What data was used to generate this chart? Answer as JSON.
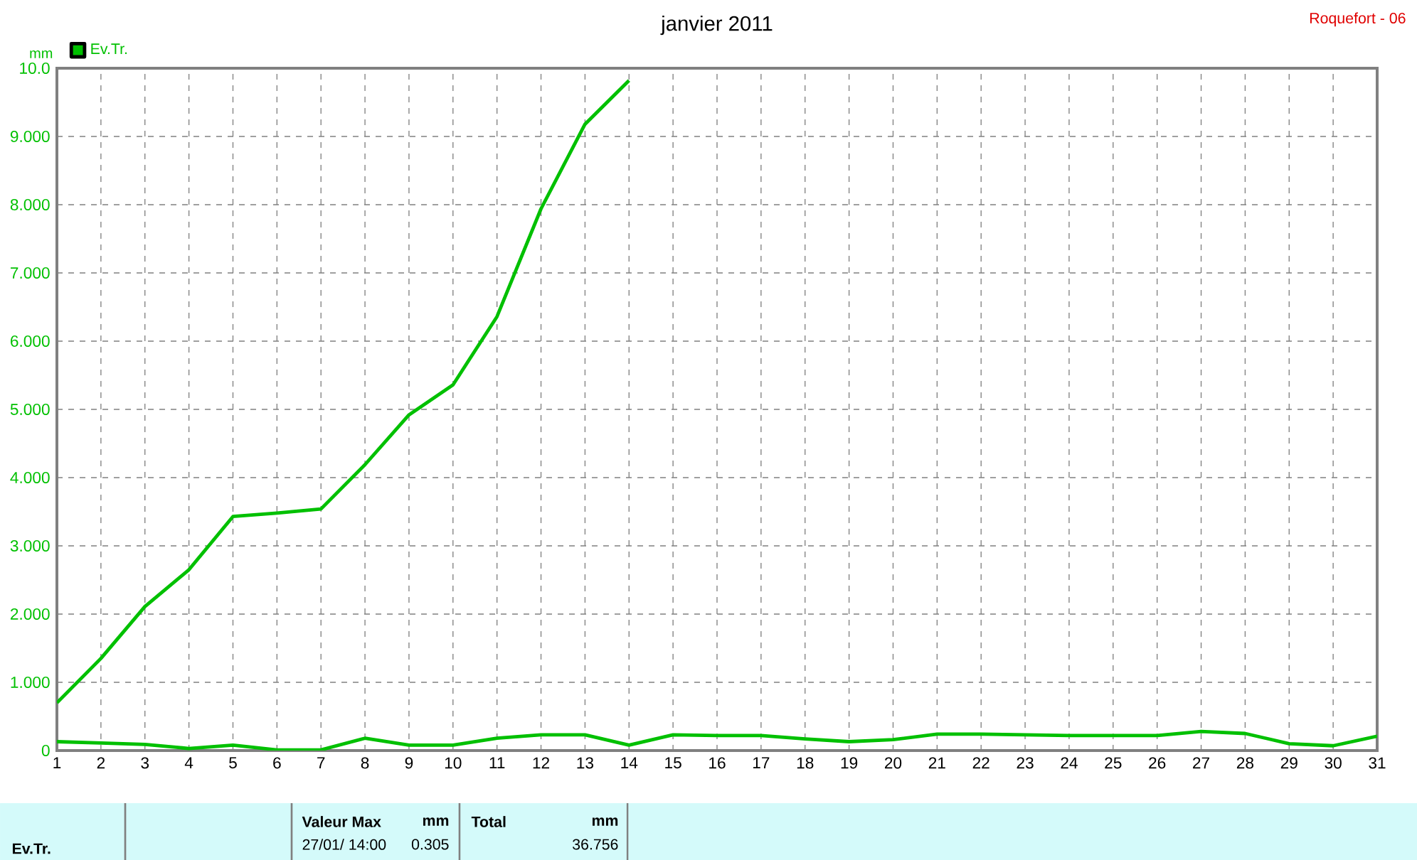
{
  "chart_data": {
    "type": "line",
    "title": "janvier 2011",
    "ylabel": "mm",
    "x": [
      1,
      2,
      3,
      4,
      5,
      6,
      7,
      8,
      9,
      10,
      11,
      12,
      13,
      14,
      15,
      16,
      17,
      18,
      19,
      20,
      21,
      22,
      23,
      24,
      25,
      26,
      27,
      28,
      29,
      30,
      31
    ],
    "series": [
      {
        "color": "#00c000",
        "values": [
          0.7,
          1.35,
          2.11,
          2.65,
          3.43,
          3.48,
          3.54,
          4.19,
          4.92,
          5.36,
          6.36,
          7.94,
          9.18,
          9.82,
          null,
          null,
          null,
          null,
          null,
          null,
          null,
          null,
          null,
          null,
          null,
          null,
          null,
          null,
          null,
          null,
          null
        ]
      },
      {
        "name": "Ev.Tr.",
        "color": "#00c000",
        "values": [
          0.13,
          0.11,
          0.09,
          0.03,
          0.08,
          0.01,
          0.01,
          0.18,
          0.08,
          0.08,
          0.18,
          0.23,
          0.23,
          0.08,
          0.23,
          0.22,
          0.22,
          0.17,
          0.13,
          0.16,
          0.24,
          0.24,
          0.23,
          0.22,
          0.22,
          0.22,
          0.28,
          0.25,
          0.1,
          0.07,
          0.21
        ]
      }
    ],
    "xlim": [
      1,
      31
    ],
    "xticks": [
      1,
      2,
      3,
      4,
      5,
      6,
      7,
      8,
      9,
      10,
      11,
      12,
      13,
      14,
      15,
      16,
      17,
      18,
      19,
      20,
      21,
      22,
      23,
      24,
      25,
      26,
      27,
      28,
      29,
      30,
      31
    ],
    "ylim": [
      0,
      10
    ],
    "yticks": [
      0,
      {
        "value": 1,
        "label": "1.000"
      },
      {
        "value": 2,
        "label": "2.000"
      },
      {
        "value": 3,
        "label": "3.000"
      },
      {
        "value": 4,
        "label": "4.000"
      },
      {
        "value": 5,
        "label": "5.000"
      },
      {
        "value": 6,
        "label": "6.000"
      },
      {
        "value": 7,
        "label": "7.000"
      },
      {
        "value": 8,
        "label": "8.000"
      },
      {
        "value": 9,
        "label": "9.000"
      },
      {
        "value": 10,
        "label": "10.0"
      }
    ],
    "grid": true,
    "legend": "top left",
    "marker": "none",
    "line_style": "solid",
    "annotations": [
      "Roquefort - 06",
      "Ev.Tr.",
      "Valeur Max",
      "mm",
      "27/01/ 14:00",
      "0.305",
      "Total",
      "mm",
      "36.756"
    ]
  }
}
